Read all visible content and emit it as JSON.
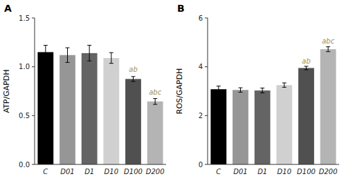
{
  "chart_data": [
    {
      "type": "bar",
      "title": "A",
      "ylabel": "ATP/GAPDH",
      "categories": [
        "C",
        "D01",
        "D1",
        "D10",
        "D100",
        "D200"
      ],
      "values": [
        1.15,
        1.12,
        1.14,
        1.09,
        0.875,
        0.645
      ],
      "errors": [
        0.07,
        0.075,
        0.08,
        0.055,
        0.025,
        0.03
      ],
      "colors": [
        "#000000",
        "#969696",
        "#646464",
        "#d0d0d0",
        "#505050",
        "#b4b4b4"
      ],
      "ylim": [
        0,
        1.5
      ],
      "yticks": [
        {
          "value": 0.0,
          "label": "0.0"
        },
        0.5,
        {
          "value": 1.0,
          "label": "1.0"
        },
        1.5
      ],
      "annotations": [
        {
          "text": "ab",
          "category": "D100",
          "y": 0.935,
          "color": "#a09060"
        },
        {
          "text": "abc",
          "category": "D200",
          "y": 0.7,
          "color": "#a09060"
        }
      ]
    },
    {
      "type": "bar",
      "title": "B",
      "ylabel": "ROS/GAPDH",
      "categories": [
        "C",
        "D01",
        "D1",
        "D10",
        "D100",
        "D200"
      ],
      "values": [
        3.08,
        3.05,
        3.03,
        3.25,
        3.95,
        4.72
      ],
      "errors": [
        0.13,
        0.09,
        0.1,
        0.09,
        0.07,
        0.1
      ],
      "colors": [
        "#000000",
        "#969696",
        "#646464",
        "#d0d0d0",
        "#505050",
        "#b4b4b4"
      ],
      "ylim": [
        0,
        6
      ],
      "yticks": [
        0,
        2,
        4,
        6
      ],
      "annotations": [
        {
          "text": "ab",
          "category": "D100",
          "y": 4.08,
          "color": "#a09060"
        },
        {
          "text": "abc",
          "category": "D200",
          "y": 4.9,
          "color": "#a09060"
        }
      ]
    }
  ]
}
